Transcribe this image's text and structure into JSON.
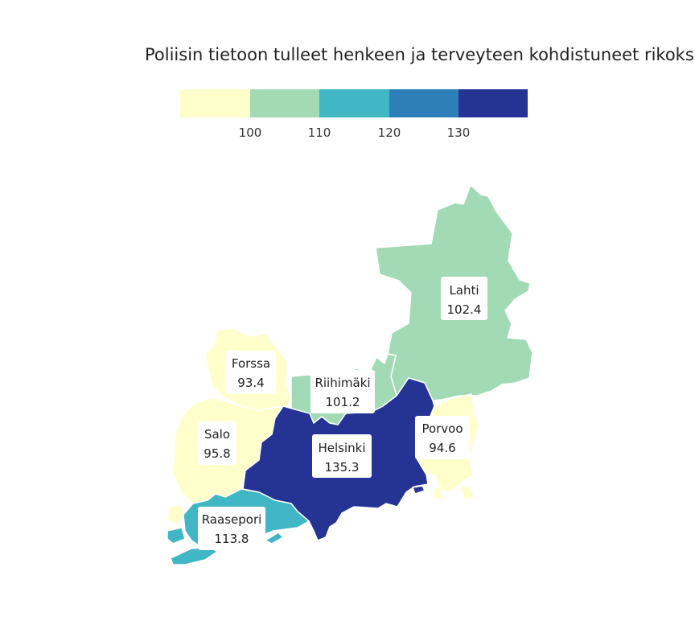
{
  "title": "Poliisin tietoon tulleet henkeen ja terveyteen kohdistuneet rikokset",
  "legend": {
    "ticks": [
      "100",
      "110",
      "120",
      "130"
    ],
    "colors": [
      "#ffffcc",
      "#a1dab4",
      "#41b6c4",
      "#2c7fb8",
      "#253494"
    ]
  },
  "regions": [
    {
      "name": "Lahti",
      "value": "102.4",
      "color": "#a1dab4"
    },
    {
      "name": "Forssa",
      "value": "93.4",
      "color": "#ffffcc"
    },
    {
      "name": "Riihimäki",
      "value": "101.2",
      "color": "#a1dab4"
    },
    {
      "name": "Salo",
      "value": "95.8",
      "color": "#ffffcc"
    },
    {
      "name": "Porvoo",
      "value": "94.6",
      "color": "#ffffcc"
    },
    {
      "name": "Helsinki",
      "value": "135.3",
      "color": "#253494"
    },
    {
      "name": "Raasepori",
      "value": "113.8",
      "color": "#41b6c4"
    }
  ]
}
